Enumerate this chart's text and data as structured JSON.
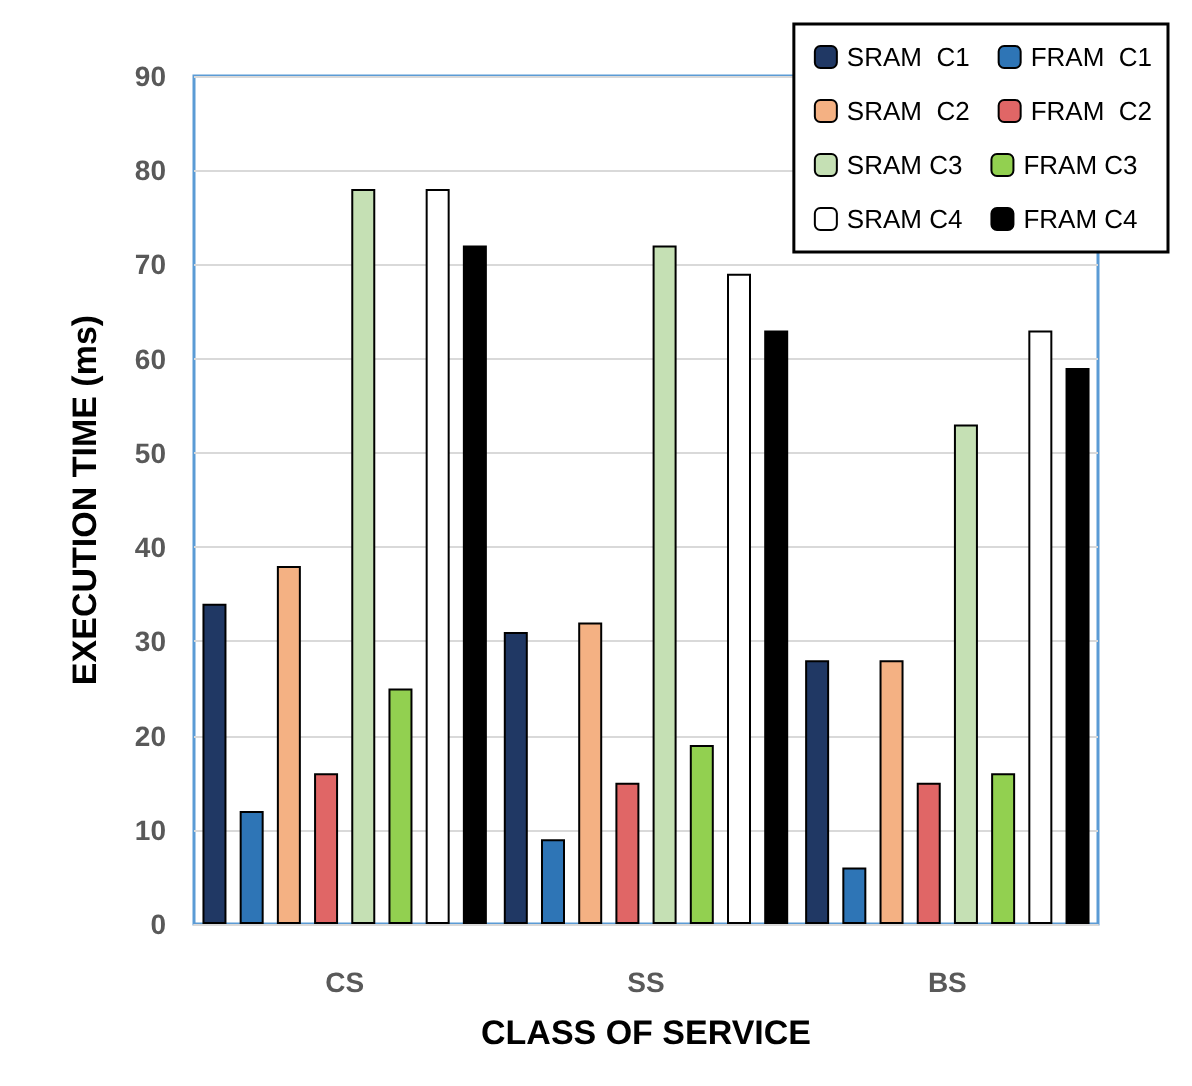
{
  "chart_data": {
    "type": "bar",
    "xlabel": "CLASS OF SERVICE",
    "ylabel": "EXECUTION TIME (ms)",
    "categories": [
      "CS",
      "SS",
      "BS"
    ],
    "series": [
      {
        "name": "SRAM  C1",
        "color": "#203864",
        "values": [
          34,
          31,
          28
        ]
      },
      {
        "name": "FRAM  C1",
        "color": "#2e75b6",
        "values": [
          12,
          9,
          6
        ]
      },
      {
        "name": "SRAM  C2",
        "color": "#f4b183",
        "values": [
          38,
          32,
          28
        ]
      },
      {
        "name": "FRAM  C2",
        "color": "#e06666",
        "values": [
          16,
          15,
          15
        ]
      },
      {
        "name": "SRAM C3",
        "color": "#c5e0b4",
        "values": [
          78,
          72,
          53
        ]
      },
      {
        "name": "FRAM C3",
        "color": "#92d050",
        "values": [
          25,
          19,
          16
        ]
      },
      {
        "name": "SRAM C4",
        "color": "#ffffff",
        "values": [
          78,
          69,
          63
        ]
      },
      {
        "name": "FRAM C4",
        "color": "#000000",
        "values": [
          72,
          63,
          59
        ]
      }
    ],
    "ylim": [
      0,
      90
    ],
    "yticks": [
      0,
      10,
      20,
      30,
      40,
      50,
      60,
      70,
      80,
      90
    ],
    "grid": "y",
    "legend": "top right"
  }
}
